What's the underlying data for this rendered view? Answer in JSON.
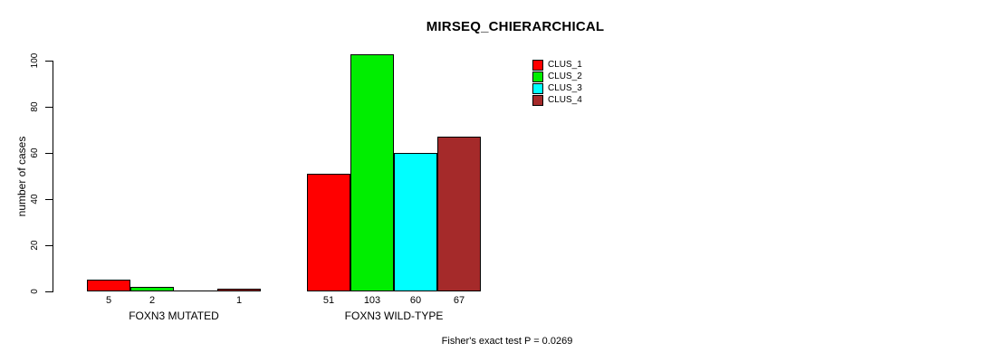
{
  "chart_data": {
    "type": "bar",
    "title": "MIRSEQ_CHIERARCHICAL",
    "ylabel": "number of cases",
    "xlabel": "",
    "ylim": [
      0,
      100
    ],
    "yticks": [
      0,
      20,
      40,
      60,
      80,
      100
    ],
    "grid": false,
    "legend_position": "top-right",
    "categories": [
      "FOXN3 MUTATED",
      "FOXN3 WILD-TYPE"
    ],
    "series": [
      {
        "name": "CLUS_1",
        "color": "#ff0000",
        "values": [
          5,
          51
        ],
        "value_labels": [
          "5",
          "51"
        ]
      },
      {
        "name": "CLUS_2",
        "color": "#00ee00",
        "values": [
          2,
          103
        ],
        "value_labels": [
          "2",
          "103"
        ]
      },
      {
        "name": "CLUS_3",
        "color": "#00ffff",
        "values": [
          0,
          60
        ],
        "value_labels": [
          "",
          "60"
        ]
      },
      {
        "name": "CLUS_4",
        "color": "#a52a2a",
        "values": [
          1,
          67
        ],
        "value_labels": [
          "1",
          "67"
        ]
      }
    ],
    "footnote": "Fisher's exact test P = 0.0269"
  }
}
